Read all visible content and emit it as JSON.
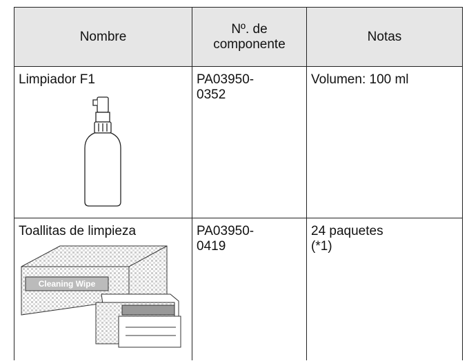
{
  "table": {
    "header": [
      "Nombre",
      "Nº. de componente",
      "Notas"
    ],
    "rows": [
      [
        "Limpiador F1",
        "PA03950-0352",
        "Volumen: 100 ml"
      ],
      [
        "Toallitas de limpieza",
        "PA03950-0419",
        "24 paquetes (*1)"
      ]
    ]
  },
  "illustration": {
    "wipe_label": "Cleaning Wipe"
  }
}
